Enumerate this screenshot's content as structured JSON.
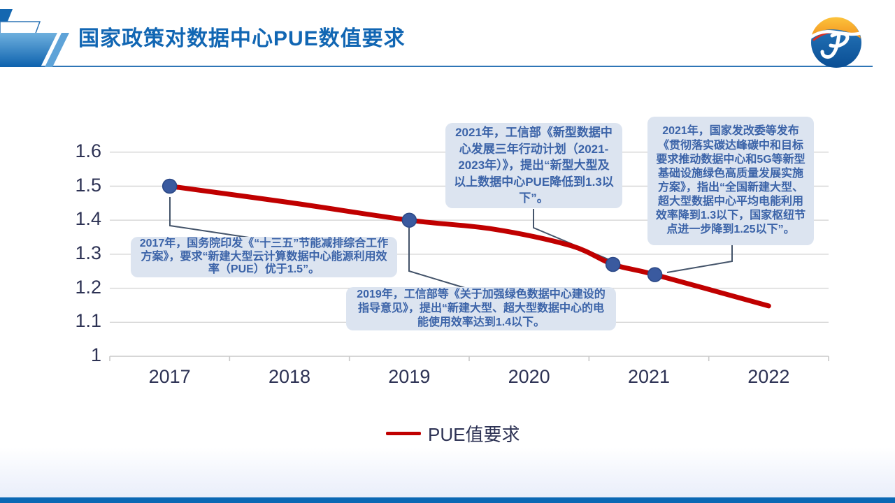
{
  "slide": {
    "title": "国家政策对数据中心PUE数值要求",
    "logo": "jp-company-logo"
  },
  "theme": {
    "title_blue": "#1166b3",
    "rule_blue": "#2e75b6",
    "bottom_bar_blue": "#0b68b4",
    "callout_bg": "#dce4f0",
    "callout_text": "#3b63a8",
    "axis_text": "#2d3254"
  },
  "chart_data": {
    "type": "line",
    "title": "",
    "xlabel": "",
    "ylabel": "",
    "x_ticks": [
      "2017",
      "2018",
      "2019",
      "2020",
      "2021",
      "2022"
    ],
    "y_ticks": [
      "1",
      "1.1",
      "1.2",
      "1.3",
      "1.4",
      "1.5",
      "1.6"
    ],
    "ylim": [
      1.0,
      1.65
    ],
    "grid": "horizontal",
    "grid_color": "#d6d6d6",
    "axis_color": "#c9c9c9",
    "leader_color": "#44546a",
    "marker_color": "#3a5a9f",
    "marker_edge_color": "#2b4886",
    "legend": "PUE值要求",
    "legend_position": "bottom",
    "series": [
      {
        "name": "PUE值要求",
        "color": "#c00000",
        "points": [
          [
            2017,
            1.5
          ],
          [
            2018,
            1.452
          ],
          [
            2019,
            1.4
          ],
          [
            2019.7,
            1.374
          ],
          [
            2020.35,
            1.325
          ],
          [
            2020.7,
            1.27
          ],
          [
            2021.05,
            1.24
          ],
          [
            2022,
            1.148
          ]
        ]
      }
    ],
    "markers": [
      [
        2017,
        1.5
      ],
      [
        2019,
        1.4
      ],
      [
        2020.7,
        1.27
      ],
      [
        2021.05,
        1.24
      ]
    ]
  },
  "annotations": [
    {
      "year": "2017",
      "text": "2017年，国务院印发《“十三五”节能减排综合工作方案》，要求“新建大型云计算数据中心能源利用效率（PUE）优于1.5”。"
    },
    {
      "year": "2019",
      "text": "2019年，工信部等《关于加强绿色数据中心建设的指导意见》，提出“新建大型、超大型数据中心的电能使用效率达到1.4以下。"
    },
    {
      "year": "2021",
      "text": "2021年，工信部《新型数据中心发展三年行动计划（2021-2023年）》，提出“新型大型及以上数据中心PUE降低到1.3以下”。"
    },
    {
      "year": "2021",
      "text": "2021年，国家发改委等发布《贯彻落实碳达峰碳中和目标要求推动数据中心和5G等新型基础设施绿色高质量发展实施方案》，指出“全国新建大型、超大型数据中心平均电能利用效率降到1.3以下，国家枢纽节点进一步降到1.25以下”。"
    }
  ]
}
